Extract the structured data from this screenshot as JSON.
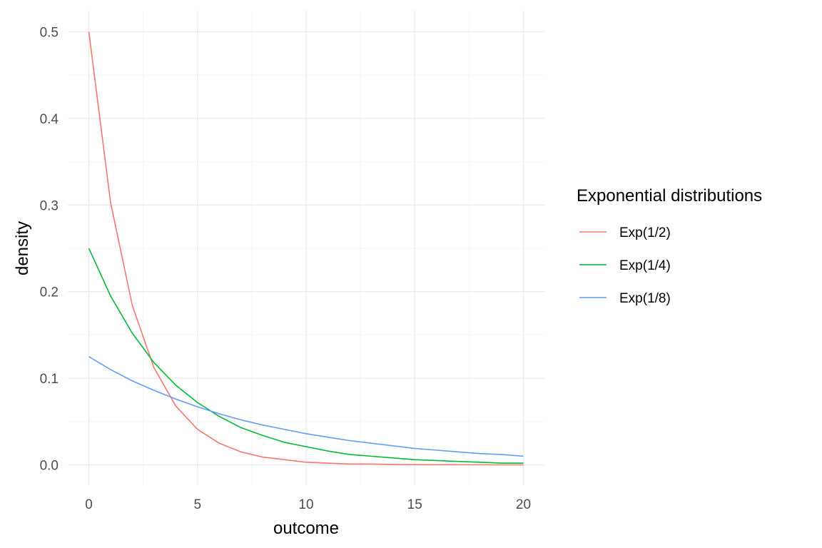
{
  "chart_data": {
    "type": "line",
    "title": "",
    "xlabel": "outcome",
    "ylabel": "density",
    "xlim": [
      0,
      20
    ],
    "ylim": [
      0,
      0.5
    ],
    "x_ticks": [
      0,
      5,
      10,
      15,
      20
    ],
    "x_tick_labels": [
      "0",
      "5",
      "10",
      "15",
      "20"
    ],
    "y_ticks": [
      0.0,
      0.1,
      0.2,
      0.3,
      0.4,
      0.5
    ],
    "y_tick_labels": [
      "0.0",
      "0.1",
      "0.2",
      "0.3",
      "0.4",
      "0.5"
    ],
    "grid": true,
    "legend": {
      "title": "Exponential distributions",
      "position": "right"
    },
    "x": [
      0,
      1,
      2,
      3,
      4,
      5,
      6,
      7,
      8,
      9,
      10,
      11,
      12,
      13,
      14,
      15,
      16,
      17,
      18,
      19,
      20
    ],
    "series": [
      {
        "name": "Exp(1/2)",
        "color": "#F8766D",
        "values": [
          0.5,
          0.303,
          0.184,
          0.112,
          0.068,
          0.041,
          0.025,
          0.015,
          0.009,
          0.006,
          0.003,
          0.002,
          0.001,
          0.001,
          0.0005,
          0.0003,
          0.0002,
          0.0001,
          0.0001,
          0.0,
          0.0
        ]
      },
      {
        "name": "Exp(1/4)",
        "color": "#00BA38",
        "values": [
          0.25,
          0.195,
          0.152,
          0.118,
          0.092,
          0.072,
          0.056,
          0.043,
          0.034,
          0.026,
          0.021,
          0.016,
          0.012,
          0.01,
          0.008,
          0.006,
          0.005,
          0.004,
          0.003,
          0.002,
          0.002
        ]
      },
      {
        "name": "Exp(1/8)",
        "color": "#619CFF",
        "values": [
          0.125,
          0.11,
          0.097,
          0.086,
          0.076,
          0.067,
          0.059,
          0.052,
          0.046,
          0.041,
          0.036,
          0.032,
          0.028,
          0.025,
          0.022,
          0.019,
          0.017,
          0.015,
          0.013,
          0.012,
          0.01
        ]
      }
    ]
  }
}
